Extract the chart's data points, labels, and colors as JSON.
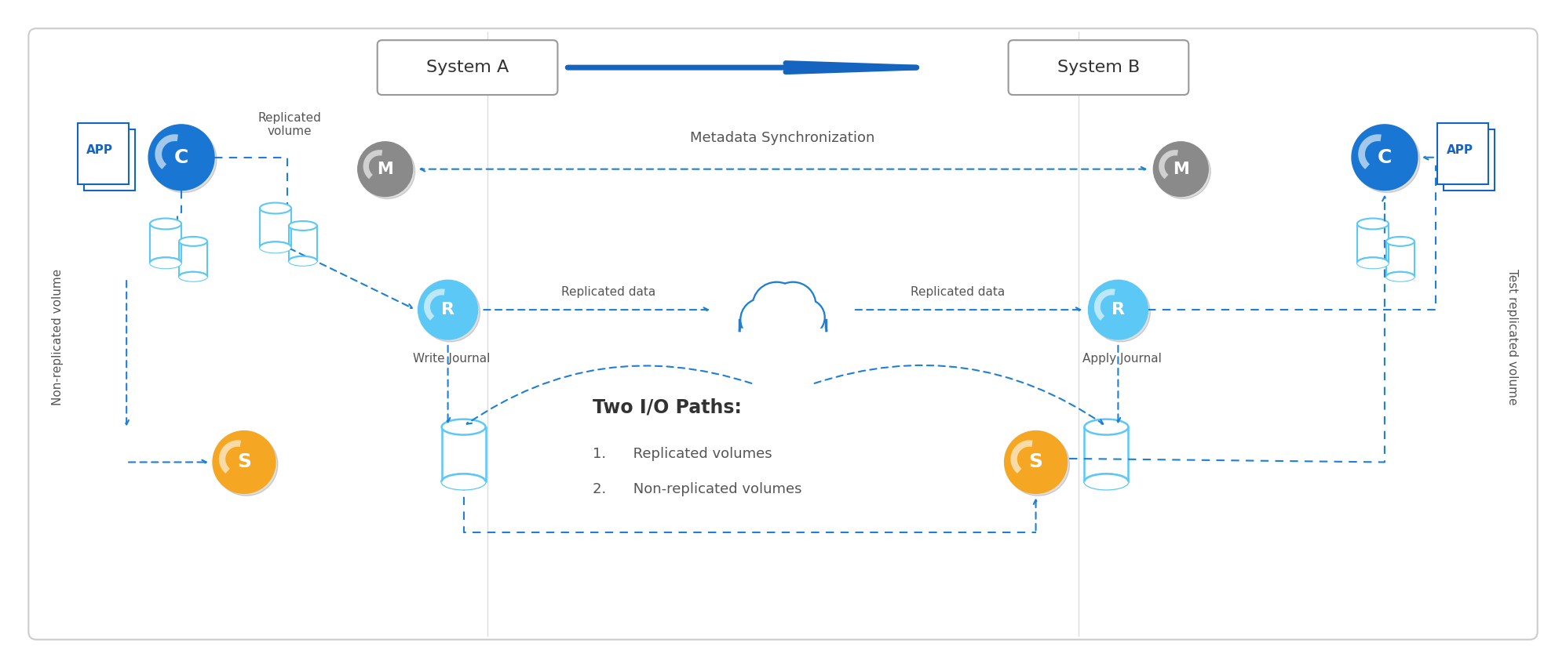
{
  "bg_color": "#ffffff",
  "border_color": "#cccccc",
  "blue_dark": "#1565c0",
  "blue_circle": "#1976d2",
  "blue_circle_light": "#5bc8f5",
  "gray_circle": "#8a8a8a",
  "orange_circle": "#f5a623",
  "text_dark": "#555555",
  "dashed_blue": "#1e7fd4",
  "system_a_label": "System A",
  "system_b_label": "System B",
  "metadata_label": "Metadata Synchronization",
  "two_io_paths_label": "Two I/O Paths:",
  "io_path_1": "1.      Replicated volumes",
  "io_path_2": "2.      Non-replicated volumes",
  "write_journal_label": "Write Journal",
  "apply_journal_label": "Apply Journal",
  "replicated_data_left": "Replicated data",
  "replicated_data_right": "Replicated data",
  "replicated_volume_label": "Replicated\nvolume",
  "non_replicated_volume_label": "Non-replicated volume",
  "test_replicated_volume_label": "Test replicated volume",
  "divider_color": "#cccccc"
}
